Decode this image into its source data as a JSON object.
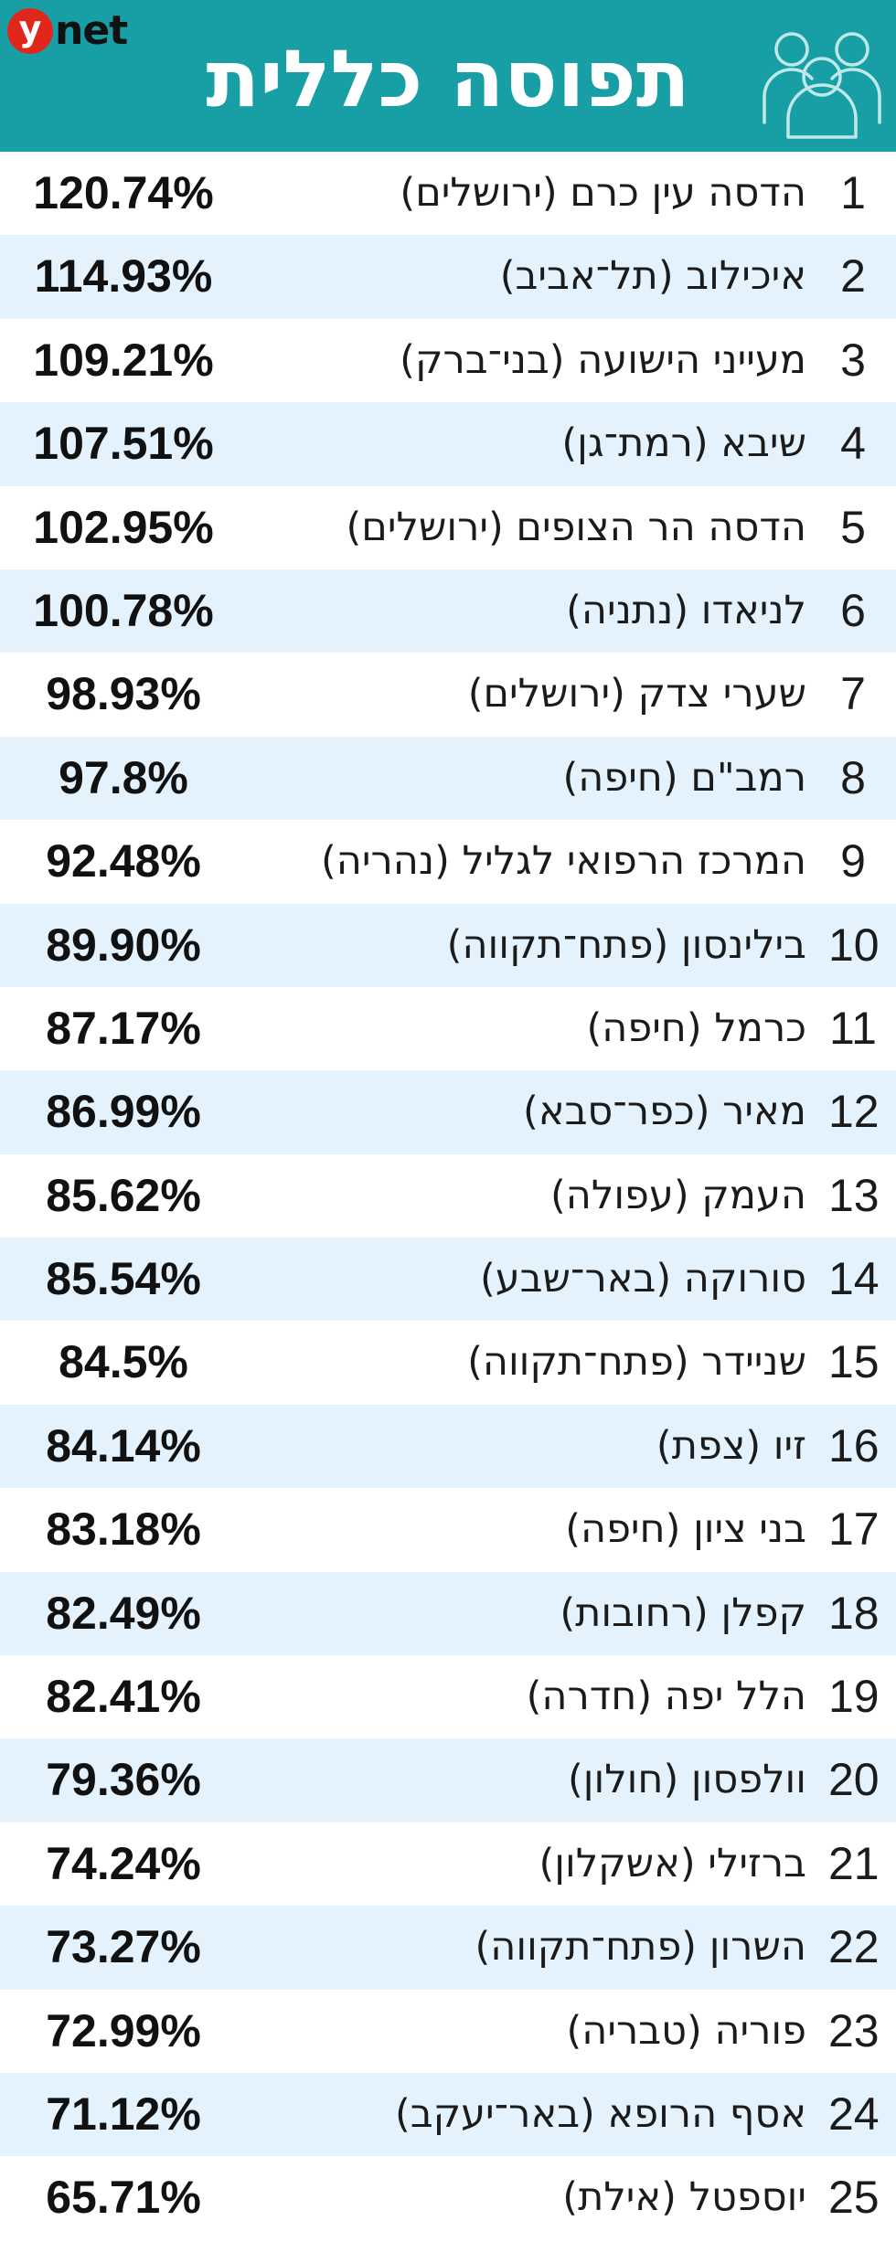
{
  "header": {
    "title": "תפוסה כללית",
    "logo_y": "y",
    "logo_net": "net",
    "icon": "people-group-icon",
    "background_color": "#189fa6"
  },
  "chart_data": {
    "type": "table",
    "title": "תפוסה כללית",
    "columns": [
      "rank",
      "hospital",
      "occupancy"
    ],
    "rows": [
      {
        "rank": "1",
        "name": "הדסה עין כרם (ירושלים)",
        "value": "120.74%"
      },
      {
        "rank": "2",
        "name": "איכילוב (תל־אביב)",
        "value": "114.93%"
      },
      {
        "rank": "3",
        "name": "מעייני הישועה (בני־ברק)",
        "value": "109.21%"
      },
      {
        "rank": "4",
        "name": "שיבא (רמת־גן)",
        "value": "107.51%"
      },
      {
        "rank": "5",
        "name": "הדסה הר הצופים (ירושלים)",
        "value": "102.95%"
      },
      {
        "rank": "6",
        "name": "לניאדו (נתניה)",
        "value": "100.78%"
      },
      {
        "rank": "7",
        "name": "שערי צדק (ירושלים)",
        "value": "98.93%"
      },
      {
        "rank": "8",
        "name": "רמב\"ם (חיפה)",
        "value": "97.8%"
      },
      {
        "rank": "9",
        "name": "המרכז הרפואי לגליל (נהריה)",
        "value": "92.48%"
      },
      {
        "rank": "10",
        "name": "בילינסון (פתח־תקווה)",
        "value": "89.90%"
      },
      {
        "rank": "11",
        "name": "כרמל (חיפה)",
        "value": "87.17%"
      },
      {
        "rank": "12",
        "name": "מאיר (כפר־סבא)",
        "value": "86.99%"
      },
      {
        "rank": "13",
        "name": "העמק (עפולה)",
        "value": "85.62%"
      },
      {
        "rank": "14",
        "name": "סורוקה (באר־שבע)",
        "value": "85.54%"
      },
      {
        "rank": "15",
        "name": "שניידר (פתח־תקווה)",
        "value": "84.5%"
      },
      {
        "rank": "16",
        "name": "זיו (צפת)",
        "value": "84.14%"
      },
      {
        "rank": "17",
        "name": "בני ציון (חיפה)",
        "value": "83.18%"
      },
      {
        "rank": "18",
        "name": "קפלן (רחובות)",
        "value": "82.49%"
      },
      {
        "rank": "19",
        "name": "הלל יפה (חדרה)",
        "value": "82.41%"
      },
      {
        "rank": "20",
        "name": "וולפסון (חולון)",
        "value": "79.36%"
      },
      {
        "rank": "21",
        "name": "ברזילי (אשקלון)",
        "value": "74.24%"
      },
      {
        "rank": "22",
        "name": "השרון (פתח־תקווה)",
        "value": "73.27%"
      },
      {
        "rank": "23",
        "name": "פוריה (טבריה)",
        "value": "72.99%"
      },
      {
        "rank": "24",
        "name": "אסף הרופא (באר־יעקב)",
        "value": "71.12%"
      },
      {
        "rank": "25",
        "name": "יוספטל (אילת)",
        "value": "65.71%"
      }
    ],
    "row_colors": [
      "#ffffff",
      "#e3f2fc"
    ]
  }
}
